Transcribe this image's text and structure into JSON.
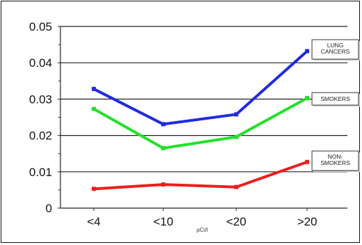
{
  "chart_data": {
    "type": "line",
    "categories": [
      "<4",
      "<10",
      "<20",
      ">20"
    ],
    "xlabel": "pCi/l",
    "ylabel": "",
    "ylim": [
      0,
      0.05
    ],
    "yticks": [
      "0",
      "0.01",
      "0.02",
      "0.03",
      "0.04",
      "0.05"
    ],
    "grid": "horizontal",
    "legend_placement": "right",
    "series": [
      {
        "name": "LUNG CANCERS",
        "label_lines": [
          "LUNG",
          "CANCERS"
        ],
        "color": "#1f2be0",
        "values": [
          0.0328,
          0.0231,
          0.0258,
          0.0432
        ]
      },
      {
        "name": "SMOKERS",
        "label_lines": [
          "SMOKERS"
        ],
        "color": "#22e02a",
        "values": [
          0.0273,
          0.0165,
          0.0196,
          0.0303
        ]
      },
      {
        "name": "NON-SMOKERS",
        "label_lines": [
          "NON-",
          "SMOKERS"
        ],
        "color": "#ee1d1d",
        "values": [
          0.0053,
          0.0065,
          0.0058,
          0.0127
        ]
      }
    ]
  }
}
